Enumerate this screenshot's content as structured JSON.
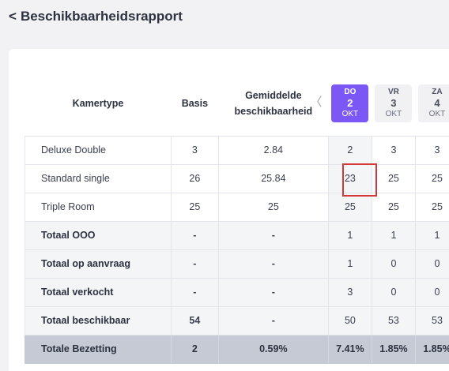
{
  "header": {
    "back_symbol": "<",
    "title": "Beschikbaarheidsrapport"
  },
  "columns": {
    "type": "Kamertype",
    "basis": "Basis",
    "avg_line1": "Gemiddelde",
    "avg_line2": "beschikbaarheid",
    "prev_symbol": "〈"
  },
  "days": [
    {
      "name": "DO",
      "date": "2",
      "month": "OKT",
      "state": "active"
    },
    {
      "name": "VR",
      "date": "3",
      "month": "OKT",
      "state": "inactive"
    },
    {
      "name": "ZA",
      "date": "4",
      "month": "OKT",
      "state": "inactive"
    }
  ],
  "rows": [
    {
      "label": "Deluxe Double",
      "basis": "3",
      "avg": "2.84",
      "values": [
        "2",
        "3",
        "3"
      ]
    },
    {
      "label": "Standard single",
      "basis": "26",
      "avg": "25.84",
      "values": [
        "23",
        "25",
        "25"
      ]
    },
    {
      "label": "Triple Room",
      "basis": "25",
      "avg": "25",
      "values": [
        "25",
        "25",
        "25"
      ]
    },
    {
      "label": "Totaal OOO",
      "basis": "-",
      "avg": "-",
      "values": [
        "1",
        "1",
        "1"
      ]
    },
    {
      "label": "Totaal op aanvraag",
      "basis": "-",
      "avg": "-",
      "values": [
        "1",
        "0",
        "0"
      ]
    },
    {
      "label": "Totaal verkocht",
      "basis": "-",
      "avg": "-",
      "values": [
        "3",
        "0",
        "0"
      ]
    },
    {
      "label": "Totaal beschikbaar",
      "basis": "54",
      "avg": "-",
      "values": [
        "50",
        "53",
        "53"
      ]
    },
    {
      "label": "Totale Bezetting",
      "basis": "2",
      "avg": "0.59%",
      "values": [
        "7.41%",
        "1.85%",
        "1.85%"
      ]
    }
  ],
  "colors": {
    "accent": "#7b57f6",
    "highlight": "#d33838"
  }
}
